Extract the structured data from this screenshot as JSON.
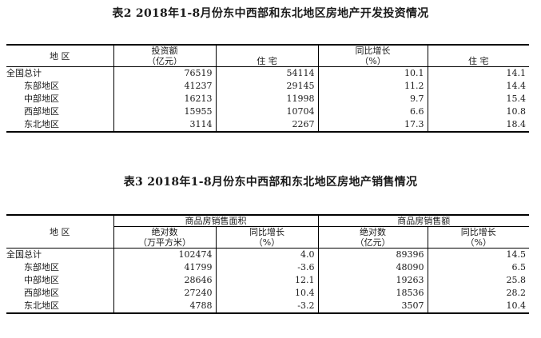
{
  "table2": {
    "title": "表2    2018年1-8月份东中西部和东北地区房地产开发投资情况",
    "headers": {
      "region": "地    区",
      "investment": "投资额",
      "investment_unit": "（亿元）",
      "residential": "住    宅",
      "yoy": "同比增长",
      "yoy_unit": "（%）",
      "residential2": "住    宅"
    },
    "rows": [
      {
        "region": "全国总计",
        "investment": "76519",
        "residential": "54114",
        "yoy": "10.1",
        "yoy_residential": "14.1"
      },
      {
        "region": "东部地区",
        "investment": "41237",
        "residential": "29145",
        "yoy": "11.2",
        "yoy_residential": "14.4"
      },
      {
        "region": "中部地区",
        "investment": "16213",
        "residential": "11998",
        "yoy": "9.7",
        "yoy_residential": "15.4"
      },
      {
        "region": "西部地区",
        "investment": "15955",
        "residential": "10704",
        "yoy": "6.6",
        "yoy_residential": "10.8"
      },
      {
        "region": "东北地区",
        "investment": "3114",
        "residential": "2267",
        "yoy": "17.3",
        "yoy_residential": "18.4"
      }
    ]
  },
  "table3": {
    "title": "表3    2018年1-8月份东中西部和东北地区房地产销售情况",
    "headers": {
      "region": "地    区",
      "area_group": "商品房销售面积",
      "sales_group": "商品房销售额",
      "absolute": "绝对数",
      "area_unit": "（万平方米）",
      "yoy": "同比增长",
      "pct_unit": "（%）",
      "absolute2": "绝对数",
      "sales_unit": "（亿元）",
      "yoy2": "同比增长",
      "pct_unit2": "（%）"
    },
    "rows": [
      {
        "region": "全国总计",
        "area": "102474",
        "area_yoy": "4.0",
        "sales": "89396",
        "sales_yoy": "14.5"
      },
      {
        "region": "东部地区",
        "area": "41799",
        "area_yoy": "-3.6",
        "sales": "48090",
        "sales_yoy": "6.5"
      },
      {
        "region": "中部地区",
        "area": "28646",
        "area_yoy": "12.1",
        "sales": "19263",
        "sales_yoy": "25.8"
      },
      {
        "region": "西部地区",
        "area": "27240",
        "area_yoy": "10.4",
        "sales": "18536",
        "sales_yoy": "28.2"
      },
      {
        "region": "东北地区",
        "area": "4788",
        "area_yoy": "-3.2",
        "sales": "3507",
        "sales_yoy": "10.4"
      }
    ]
  }
}
